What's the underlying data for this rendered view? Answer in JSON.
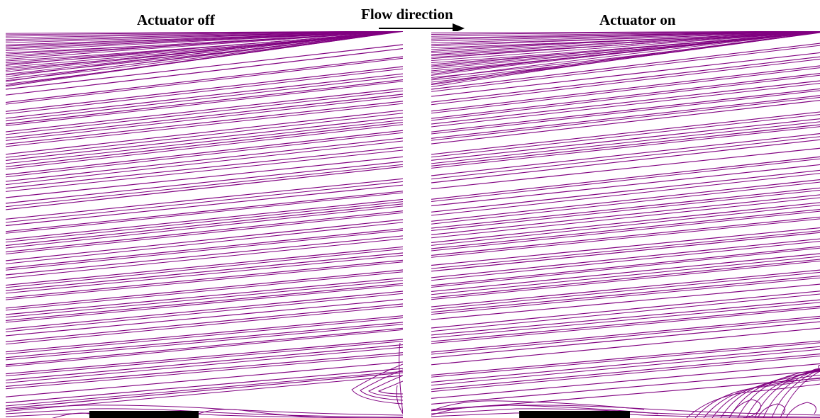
{
  "titles": {
    "left": "Actuator off",
    "center": "Flow direction",
    "right": "Actuator on"
  },
  "colors": {
    "streamline": "#800080",
    "actuator": "#000000",
    "arrow": "#000000",
    "background": "#ffffff"
  },
  "panels": [
    {
      "id": "actuator-off",
      "recirculation": "downstream-edge"
    },
    {
      "id": "actuator-on",
      "recirculation": "downstream-corner"
    }
  ]
}
